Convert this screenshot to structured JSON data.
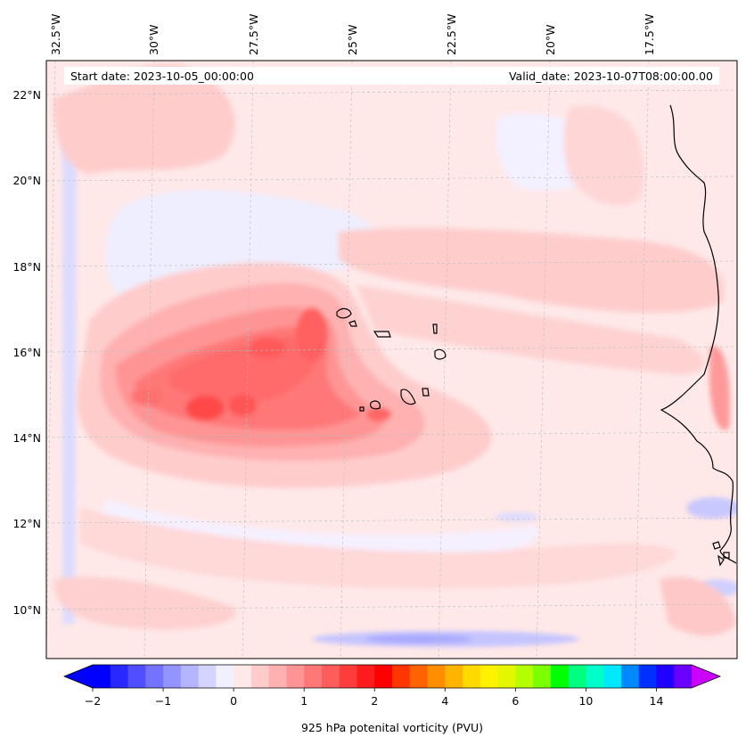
{
  "map": {
    "info": {
      "start_date": "Start date: 2023-10-05_00:00:00",
      "valid_date": "Valid_date: 2023-10-07T08:00:00.00"
    },
    "lon_labels": [
      "32.5°W",
      "30°W",
      "27.5°W",
      "25°W",
      "22.5°W",
      "20°W",
      "17.5°W"
    ],
    "lat_labels": [
      "22°N",
      "20°N",
      "18°N",
      "16°N",
      "14°N",
      "12°N",
      "10°N"
    ],
    "colors": {
      "background": "#ffe8e8",
      "coastline": "#000000",
      "grid": "#bbbbbb"
    }
  },
  "colorbar": {
    "label": "925 hPa potenital vorticity (PVU)",
    "ticks": [
      "−2",
      "−1",
      "0",
      "1",
      "2",
      "4",
      "6",
      "10",
      "14"
    ],
    "colors": [
      "#0000ff",
      "#2828ff",
      "#4f4fff",
      "#7373ff",
      "#9494ff",
      "#b4b4ff",
      "#d4d4ff",
      "#f0f0ff",
      "#ffe8e8",
      "#ffcccc",
      "#ffb0b0",
      "#ff9494",
      "#ff7878",
      "#ff5c5c",
      "#ff3c3c",
      "#ff1c1c",
      "#ff0000",
      "#ff3600",
      "#ff6200",
      "#ff8e00",
      "#ffb400",
      "#ffda00",
      "#fff200",
      "#e4f600",
      "#b4ff00",
      "#7cff00",
      "#00ff00",
      "#00ff80",
      "#00ffc8",
      "#00e8ff",
      "#0088ff",
      "#0030ff",
      "#2000ff",
      "#6a00ff"
    ],
    "under_color": "#0000ff",
    "over_color": "#cc00ff"
  }
}
